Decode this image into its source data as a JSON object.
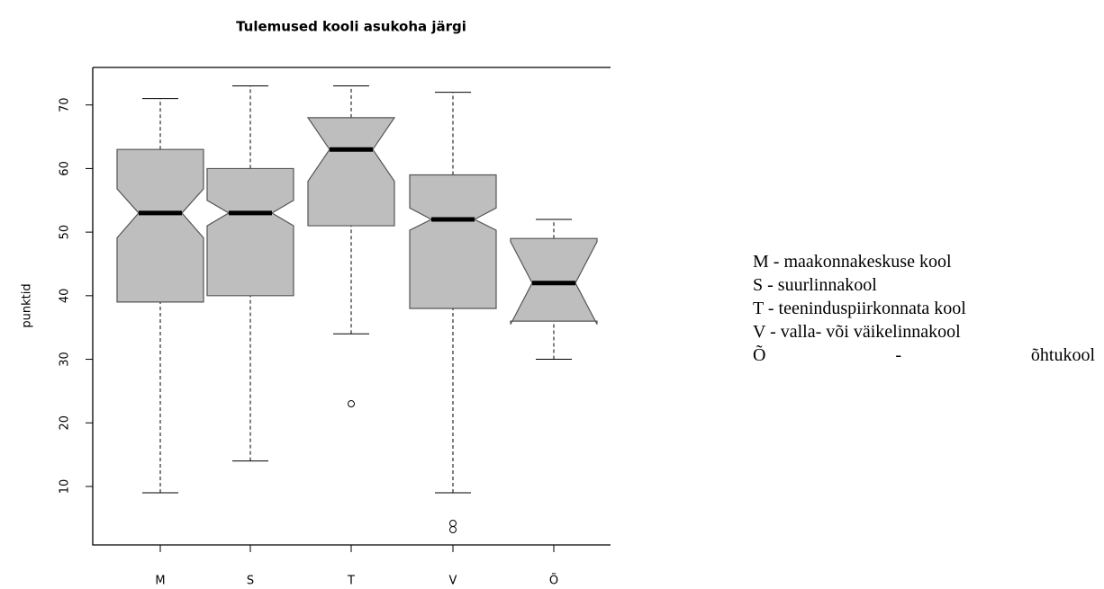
{
  "chart_data": {
    "type": "box",
    "title": "Tulemused kooli asukoha järgi",
    "y_label": "punktid",
    "categories": [
      "M",
      "S",
      "T",
      "V",
      "Õ"
    ],
    "min": [
      9,
      14,
      34,
      9,
      30
    ],
    "q1": [
      39,
      40,
      51,
      38,
      36
    ],
    "median": [
      53,
      53,
      63,
      52,
      42
    ],
    "q3": [
      63,
      60,
      68,
      59,
      49
    ],
    "max": [
      71,
      73,
      73,
      72,
      52
    ],
    "notch_low": [
      49.1,
      51,
      58,
      50.3,
      35.5
    ],
    "notch_high": [
      56.8,
      55,
      68,
      53.8,
      48.5
    ],
    "outliers": [
      [],
      [],
      [
        23
      ],
      [
        4.2,
        3.2
      ],
      []
    ],
    "color": "#bebebe",
    "ylim": [
      0.8,
      75.9
    ],
    "yticks": [
      10,
      20,
      30,
      40,
      50,
      60,
      70
    ],
    "grid": false
  },
  "legend_text": [
    "M - maakonnakeskuse kool",
    "S - suurlinnakool",
    "T - teeninduspiirkonnata kool",
    "V - valla- või väikelinnakool",
    "Õ - õhtukool"
  ]
}
